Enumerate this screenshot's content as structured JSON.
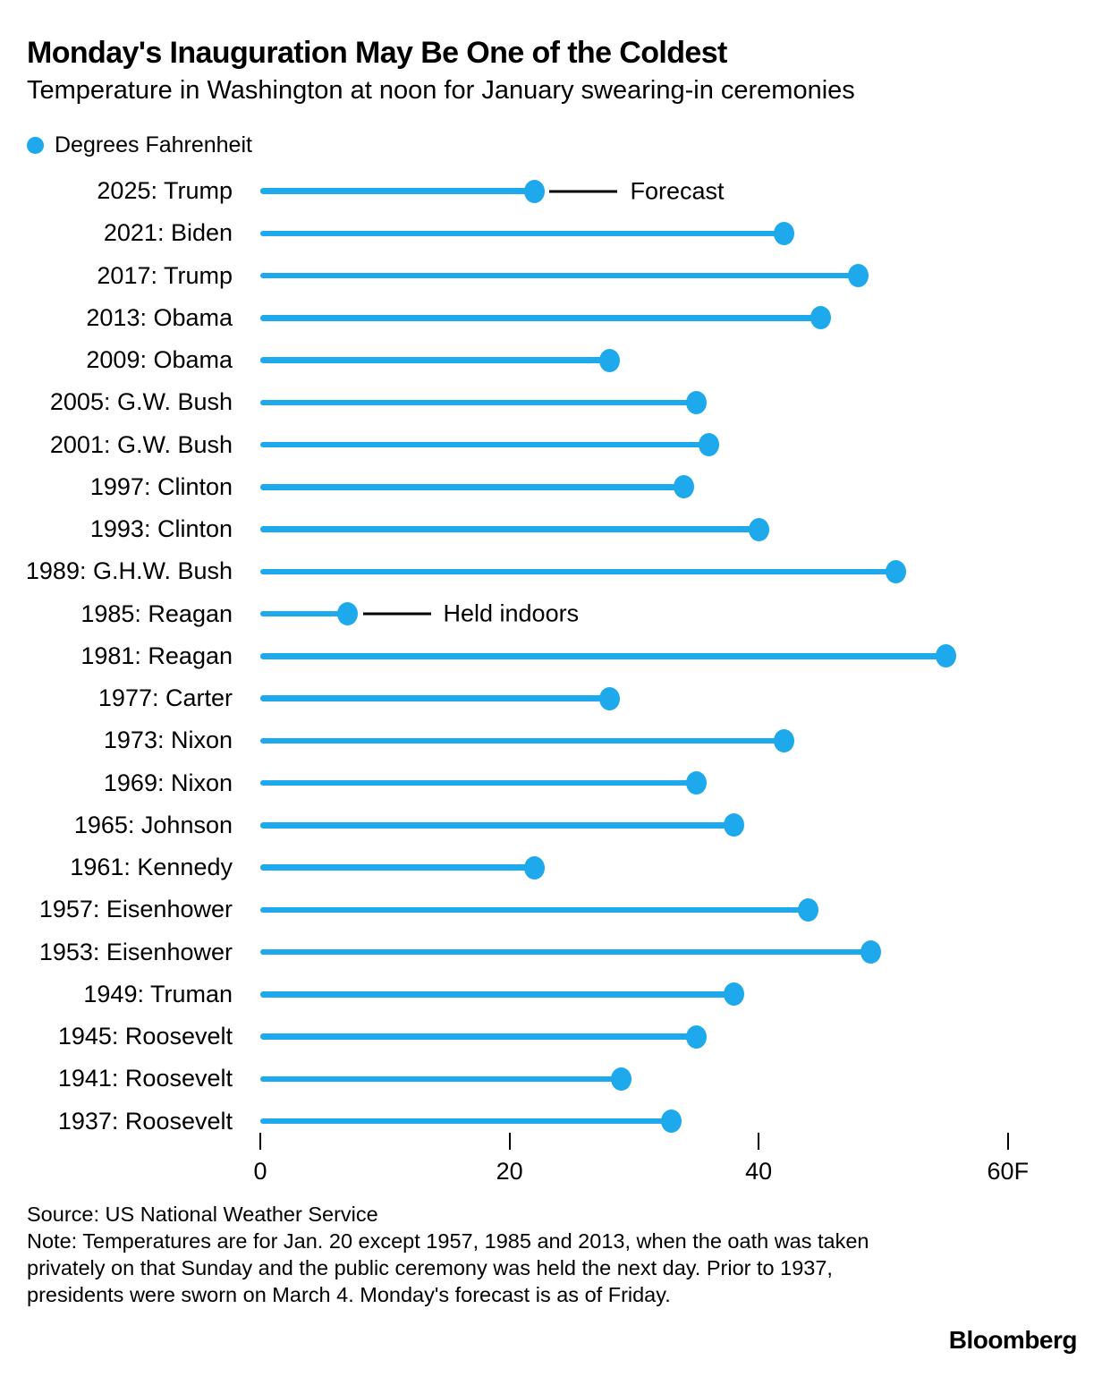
{
  "header": {
    "title": "Monday's Inauguration May Be One of the Coldest",
    "subtitle": "Temperature in Washington at noon for January swearing-in ceremonies"
  },
  "legend": {
    "label": "Degrees Fahrenheit"
  },
  "chart_data": {
    "type": "bar",
    "variant": "horizontal-lollipop",
    "title": "Monday's Inauguration May Be One of the Coldest",
    "subtitle": "Temperature in Washington at noon for January swearing-in ceremonies",
    "unit": "Degrees Fahrenheit",
    "categories": [
      "2025: Trump",
      "2021: Biden",
      "2017: Trump",
      "2013: Obama",
      "2009: Obama",
      "2005: G.W. Bush",
      "2001: G.W. Bush",
      "1997: Clinton",
      "1993: Clinton",
      "1989: G.H.W. Bush",
      "1985: Reagan",
      "1981: Reagan",
      "1977: Carter",
      "1973: Nixon",
      "1969: Nixon",
      "1965: Johnson",
      "1961: Kennedy",
      "1957: Eisenhower",
      "1953: Eisenhower",
      "1949: Truman",
      "1945: Roosevelt",
      "1941: Roosevelt",
      "1937: Roosevelt"
    ],
    "values": [
      22,
      42,
      48,
      45,
      28,
      35,
      36,
      34,
      40,
      51,
      7,
      55,
      28,
      42,
      35,
      38,
      22,
      44,
      49,
      38,
      35,
      29,
      33
    ],
    "annotations": [
      {
        "category": "2025: Trump",
        "text": "Forecast"
      },
      {
        "category": "1985: Reagan",
        "text": "Held indoors"
      }
    ],
    "xlim": [
      0,
      60
    ],
    "x_ticks": [
      0,
      20,
      40,
      60
    ],
    "x_tick_labels": [
      "0",
      "20",
      "40",
      "60F"
    ],
    "grid": false,
    "legend_position": "top-left",
    "dot_color": "#1DA9EC",
    "annotation_color": "#000000"
  },
  "footer": {
    "source": "Source: US National Weather Service",
    "note": "Note: Temperatures are for Jan. 20 except 1957, 1985 and 2013, when the oath was taken privately on that Sunday and the public ceremony was held the next day. Prior to 1937, presidents were sworn on March 4. Monday's forecast is as of Friday.",
    "logo": "Bloomberg"
  }
}
